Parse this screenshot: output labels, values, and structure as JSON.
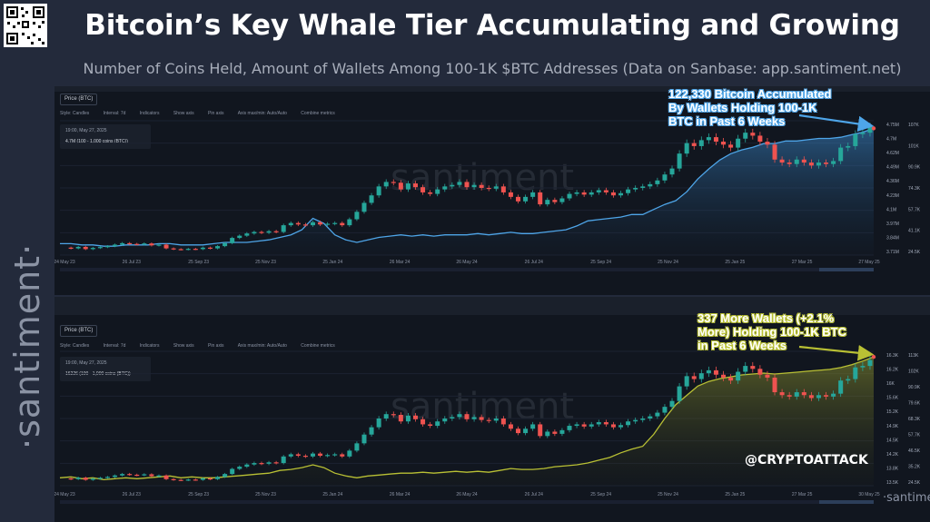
{
  "header": {
    "title": "Bitcoin’s Key Whale Tier Accumulating and Growing",
    "subtitle": "Number of Coins Held, Amount of Wallets Among 100-1K $BTC Addresses (Data on Sanbase: app.santiment.net)"
  },
  "brand": {
    "vertical_logo": "·santiment·",
    "watermark": "santiment",
    "corner_watermark": "·santiment·"
  },
  "credit": "@CRYPTOATTACK",
  "annotations": {
    "top": [
      "122,330 Bitcoin Accumulated",
      "By Wallets Holding 100-1K",
      "BTC in Past 6 Weeks"
    ],
    "bottom": [
      "337 More Wallets (+2.1%",
      "More) Holding 100-1K BTC",
      "in Past 6 Weeks"
    ]
  },
  "toolbar": {
    "price_tab": "Price (BTC)",
    "items": [
      "Style: Candles",
      "Interval: 7d",
      "Indicators",
      "Show axis",
      "Pin axis",
      "Axis max/min: Auto/Auto",
      "Combine metrics"
    ]
  },
  "legend": {
    "date": "19:00, May 27, 2025",
    "top_value": "4.7M (100 - 1,000 coins (BTC))",
    "bottom_value": "16226 (100 - 1,000 coins (BTC))"
  },
  "colors": {
    "up": "#26a69a",
    "down": "#ef5350",
    "coins_line": "#4ea5e8",
    "wallets_line": "#b9c034"
  },
  "chart_data": [
    {
      "type": "line",
      "title": "",
      "x_ticks": [
        "24 May 23",
        "26 Jul 23",
        "25 Sep 23",
        "25 Nov 23",
        "25 Jan 24",
        "26 Mar 24",
        "26 May 24",
        "26 Jul 24",
        "25 Sep 24",
        "25 Nov 24",
        "25 Jan 25",
        "27 Mar 25",
        "27 May 25"
      ],
      "right_axis_coins": [
        "4.75M",
        "4.7M",
        "4.62M",
        "4.49M",
        "4.36M",
        "4.23M",
        "4.1M",
        "3.97M",
        "3.84M",
        "3.71M"
      ],
      "right_axis_price": [
        "107K",
        "101K",
        "90.9K",
        "74.3K",
        "57.7K",
        "41.1K",
        "24.5K"
      ],
      "series": [
        {
          "name": "100 - 1,000 coins (BTC)",
          "values": [
            3.79,
            3.79,
            3.78,
            3.78,
            3.77,
            3.77,
            3.78,
            3.78,
            3.78,
            3.79,
            3.79,
            3.78,
            3.78,
            3.78,
            3.79,
            3.8,
            3.8,
            3.8,
            3.81,
            3.82,
            3.84,
            3.86,
            3.9,
            3.99,
            3.95,
            3.86,
            3.82,
            3.8,
            3.82,
            3.84,
            3.85,
            3.86,
            3.85,
            3.86,
            3.85,
            3.86,
            3.86,
            3.86,
            3.87,
            3.86,
            3.87,
            3.88,
            3.87,
            3.87,
            3.88,
            3.89,
            3.9,
            3.93,
            3.97,
            3.98,
            3.99,
            4.0,
            4.02,
            4.02,
            4.06,
            4.1,
            4.13,
            4.2,
            4.3,
            4.38,
            4.45,
            4.5,
            4.53,
            4.55,
            4.58,
            4.58,
            4.6,
            4.6,
            4.61,
            4.62,
            4.62,
            4.63,
            4.65,
            4.67,
            4.7
          ]
        }
      ]
    },
    {
      "type": "line",
      "title": "",
      "x_ticks": [
        "24 May 23",
        "26 Jul 23",
        "25 Sep 23",
        "25 Nov 23",
        "25 Jan 24",
        "26 Mar 24",
        "26 May 24",
        "26 Jul 24",
        "25 Sep 24",
        "25 Nov 24",
        "25 Jan 25",
        "27 Mar 25",
        "30 May 25"
      ],
      "right_axis_wallets": [
        "16.3K",
        "16.2K",
        "16K",
        "15.6K",
        "15.2K",
        "14.9K",
        "14.5K",
        "14.2K",
        "13.8K",
        "13.5K"
      ],
      "right_axis_price": [
        "113K",
        "102K",
        "90.9K",
        "79.6K",
        "68.3K",
        "57.7K",
        "46.5K",
        "35.2K",
        "24.5K"
      ],
      "series": [
        {
          "name": "100 - 1,000 coins (BTC)",
          "values": [
            13.62,
            13.64,
            13.6,
            13.62,
            13.58,
            13.6,
            13.62,
            13.6,
            13.62,
            13.64,
            13.66,
            13.62,
            13.64,
            13.62,
            13.62,
            13.64,
            13.66,
            13.68,
            13.7,
            13.72,
            13.78,
            13.8,
            13.84,
            13.9,
            13.84,
            13.72,
            13.66,
            13.62,
            13.66,
            13.68,
            13.7,
            13.72,
            13.72,
            13.74,
            13.72,
            13.74,
            13.76,
            13.74,
            13.76,
            13.74,
            13.78,
            13.82,
            13.8,
            13.8,
            13.82,
            13.86,
            13.88,
            13.9,
            13.94,
            14.0,
            14.06,
            14.16,
            14.24,
            14.3,
            14.56,
            14.9,
            15.2,
            15.4,
            15.6,
            15.7,
            15.76,
            15.8,
            15.84,
            15.86,
            15.88,
            15.86,
            15.88,
            15.9,
            15.92,
            15.94,
            15.96,
            16.0,
            16.06,
            16.14,
            16.23
          ]
        }
      ]
    },
    {
      "type": "bar",
      "title": "",
      "name": "BTC price candles (shared by both panels, USD)",
      "values": [
        27.0,
        26.5,
        27.5,
        26.0,
        26.8,
        27.4,
        28.0,
        29.0,
        30.0,
        29.5,
        29.2,
        29.8,
        28.5,
        29.0,
        26.5,
        26.0,
        25.8,
        26.2,
        26.0,
        27.0,
        26.5,
        28.0,
        30.0,
        33.5,
        35.0,
        36.5,
        37.5,
        37.0,
        38.0,
        37.5,
        42.0,
        43.5,
        42.5,
        42.0,
        44.0,
        42.5,
        43.0,
        43.5,
        42.0,
        46.0,
        51.0,
        57.0,
        62.0,
        68.0,
        71.0,
        70.5,
        66.0,
        70.0,
        67.5,
        64.0,
        63.0,
        66.0,
        68.0,
        69.0,
        71.0,
        67.5,
        69.0,
        67.0,
        66.5,
        68.0,
        64.0,
        61.0,
        58.0,
        61.0,
        64.0,
        56.0,
        59.0,
        57.5,
        60.0,
        63.0,
        64.0,
        62.5,
        64.0,
        65.5,
        64.0,
        62.0,
        63.5,
        66.0,
        67.0,
        68.0,
        69.5,
        72.0,
        76.0,
        80.0,
        90.0,
        97.0,
        95.0,
        99.0,
        101.0,
        98.0,
        96.0,
        94.0,
        100.0,
        104.0,
        102.0,
        98.0,
        96.0,
        86.0,
        84.0,
        83.0,
        86.0,
        84.0,
        82.0,
        84.0,
        83.0,
        85.0,
        94.0,
        95.0,
        103.0,
        104.0,
        108.0
      ]
    }
  ]
}
